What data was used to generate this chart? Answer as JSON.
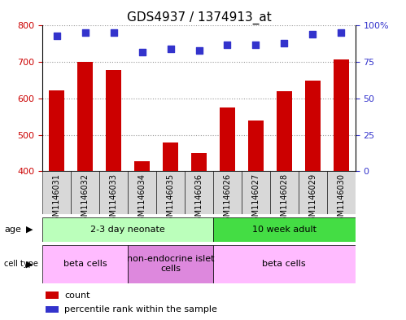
{
  "title": "GDS4937 / 1374913_at",
  "samples": [
    "GSM1146031",
    "GSM1146032",
    "GSM1146033",
    "GSM1146034",
    "GSM1146035",
    "GSM1146036",
    "GSM1146026",
    "GSM1146027",
    "GSM1146028",
    "GSM1146029",
    "GSM1146030"
  ],
  "counts": [
    622,
    700,
    678,
    428,
    478,
    450,
    575,
    540,
    620,
    648,
    706
  ],
  "percentile_ranks": [
    93,
    95,
    95,
    82,
    84,
    83,
    87,
    87,
    88,
    94,
    95
  ],
  "count_min": 400,
  "count_max": 800,
  "count_ticks": [
    400,
    500,
    600,
    700,
    800
  ],
  "right_axis_ticks": [
    0,
    25,
    50,
    75,
    100
  ],
  "right_axis_labels": [
    "0",
    "25",
    "50",
    "75",
    "100%"
  ],
  "bar_color": "#cc0000",
  "dot_color": "#3333cc",
  "age_groups": [
    {
      "label": "2-3 day neonate",
      "start": 0,
      "end": 6,
      "color": "#bbffbb"
    },
    {
      "label": "10 week adult",
      "start": 6,
      "end": 11,
      "color": "#44dd44"
    }
  ],
  "cell_type_groups": [
    {
      "label": "beta cells",
      "start": 0,
      "end": 3,
      "color": "#ffbbff"
    },
    {
      "label": "non-endocrine islet\ncells",
      "start": 3,
      "end": 6,
      "color": "#dd88dd"
    },
    {
      "label": "beta cells",
      "start": 6,
      "end": 11,
      "color": "#ffbbff"
    }
  ],
  "legend_items": [
    {
      "color": "#cc0000",
      "label": "count"
    },
    {
      "color": "#3333cc",
      "label": "percentile rank within the sample"
    }
  ],
  "bar_width": 0.55,
  "dot_size": 30,
  "dot_marker": "s",
  "grid_color": "#999999",
  "tick_label_fontsize": 7,
  "annot_fontsize": 8,
  "label_fontsize": 8,
  "title_fontsize": 11,
  "sample_box_color": "#d8d8d8",
  "border_color": "#000000"
}
